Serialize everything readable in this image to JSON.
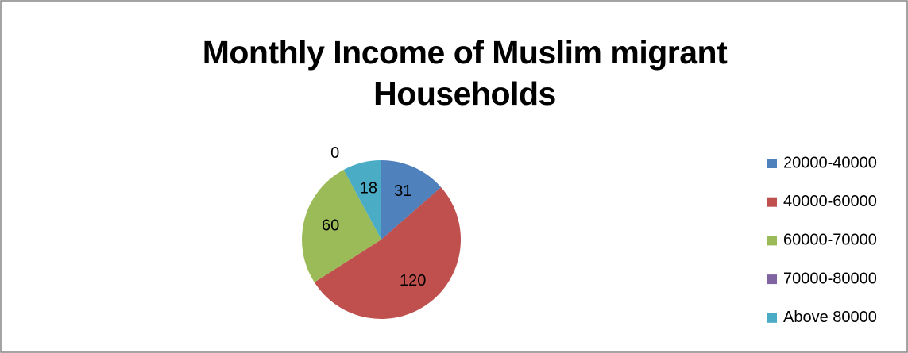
{
  "chart_data": {
    "type": "pie",
    "title": "Monthly Income of Muslim migrant Households",
    "categories": [
      "20000-40000",
      "40000-60000",
      "60000-70000",
      "70000-80000",
      "Above 80000"
    ],
    "values": [
      31,
      120,
      60,
      0,
      18
    ],
    "colors": [
      "#4f81bd",
      "#c0504d",
      "#9bbb59",
      "#8064a2",
      "#4bacc6"
    ],
    "legend": "right"
  }
}
